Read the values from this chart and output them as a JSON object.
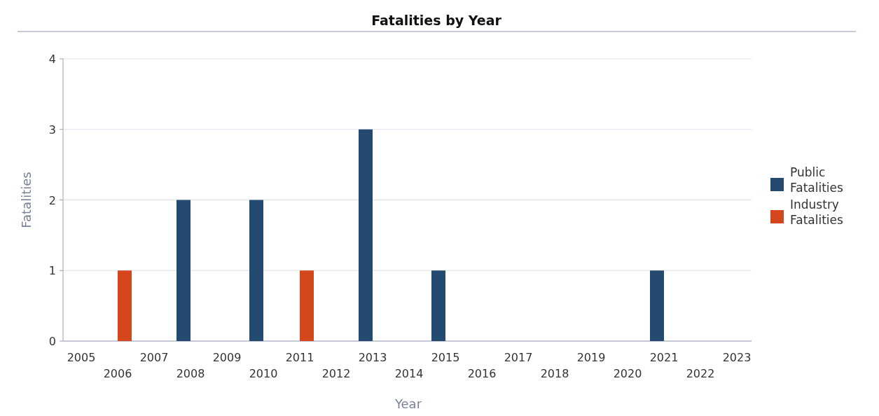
{
  "chart_data": {
    "type": "bar",
    "title": "Fatalities by Year",
    "xlabel": "Year",
    "ylabel": "Fatalities",
    "categories": [
      "2005",
      "2006",
      "2007",
      "2008",
      "2009",
      "2010",
      "2011",
      "2012",
      "2013",
      "2014",
      "2015",
      "2016",
      "2017",
      "2018",
      "2019",
      "2020",
      "2021",
      "2022",
      "2023"
    ],
    "series": [
      {
        "name": "Public Fatalities",
        "color": "#254a70",
        "values": [
          0,
          0,
          0,
          2,
          0,
          2,
          0,
          0,
          3,
          0,
          1,
          0,
          0,
          0,
          0,
          0,
          1,
          0,
          0
        ]
      },
      {
        "name": "Industry Fatalities",
        "color": "#d4461c",
        "values": [
          0,
          1,
          0,
          0,
          0,
          0,
          1,
          0,
          0,
          0,
          0,
          0,
          0,
          0,
          0,
          0,
          0,
          0,
          0
        ]
      }
    ],
    "ylim": [
      0,
      4
    ],
    "yticks": [
      0,
      1,
      2,
      3,
      4
    ],
    "grid": "y",
    "legend": "right"
  }
}
